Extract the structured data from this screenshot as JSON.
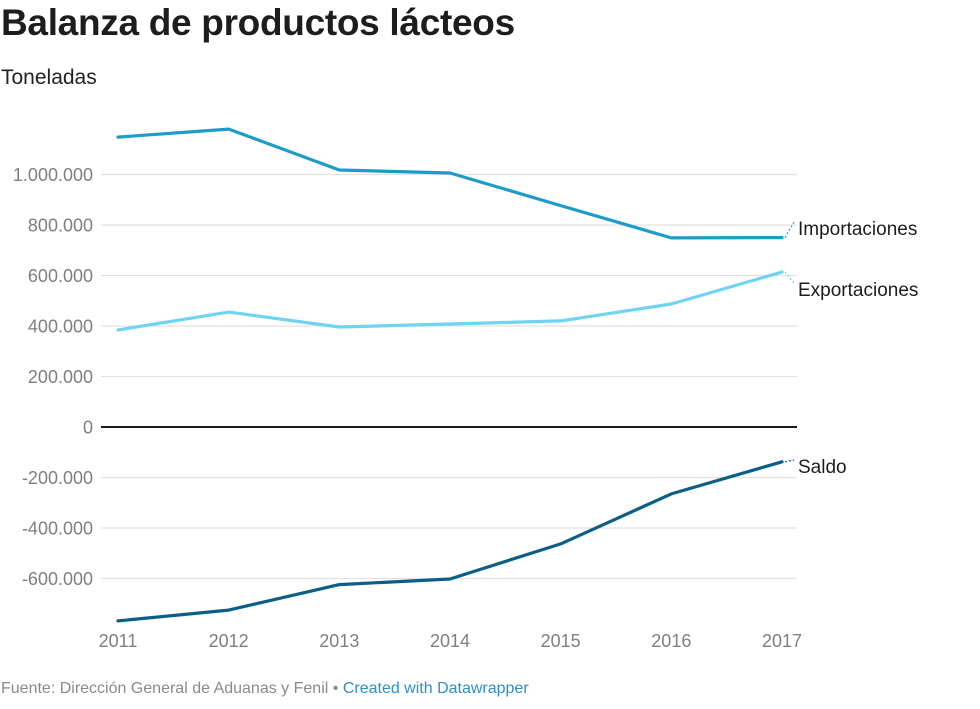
{
  "header": {
    "title": "Balanza de productos lácteos",
    "subtitle": "Toneladas"
  },
  "footer": {
    "source": "Fuente: Dirección General de Aduanas y Fenil",
    "separator": "•",
    "credit": "Created with Datawrapper"
  },
  "chart_data": {
    "type": "line",
    "title": "Balanza de productos lácteos",
    "subtitle": "Toneladas",
    "xlabel": "",
    "ylabel": "Toneladas",
    "x": [
      "2011",
      "2012",
      "2013",
      "2014",
      "2015",
      "2016",
      "2017"
    ],
    "ylim": [
      -770000,
      1190000
    ],
    "yticks": [
      1000000,
      800000,
      600000,
      400000,
      200000,
      0,
      -200000,
      -400000,
      -600000
    ],
    "ytick_labels": [
      "1.000.000",
      "800.000",
      "600.000",
      "400.000",
      "200.000",
      "0",
      "-200.000",
      "-400.000",
      "-600.000"
    ],
    "grid": true,
    "legend": "direct labels at right end of lines",
    "series": [
      {
        "name": "Importaciones",
        "color": "#1d9bc9",
        "values": [
          1148000,
          1180000,
          1018000,
          1006000,
          877000,
          749000,
          750000
        ]
      },
      {
        "name": "Exportaciones",
        "color": "#6fd4f2",
        "values": [
          384000,
          455000,
          396000,
          408000,
          420000,
          487000,
          614000
        ]
      },
      {
        "name": "Saldo",
        "color": "#0b5e85",
        "values": [
          -768000,
          -725000,
          -624000,
          -602000,
          -463000,
          -265000,
          -138000
        ]
      }
    ]
  }
}
